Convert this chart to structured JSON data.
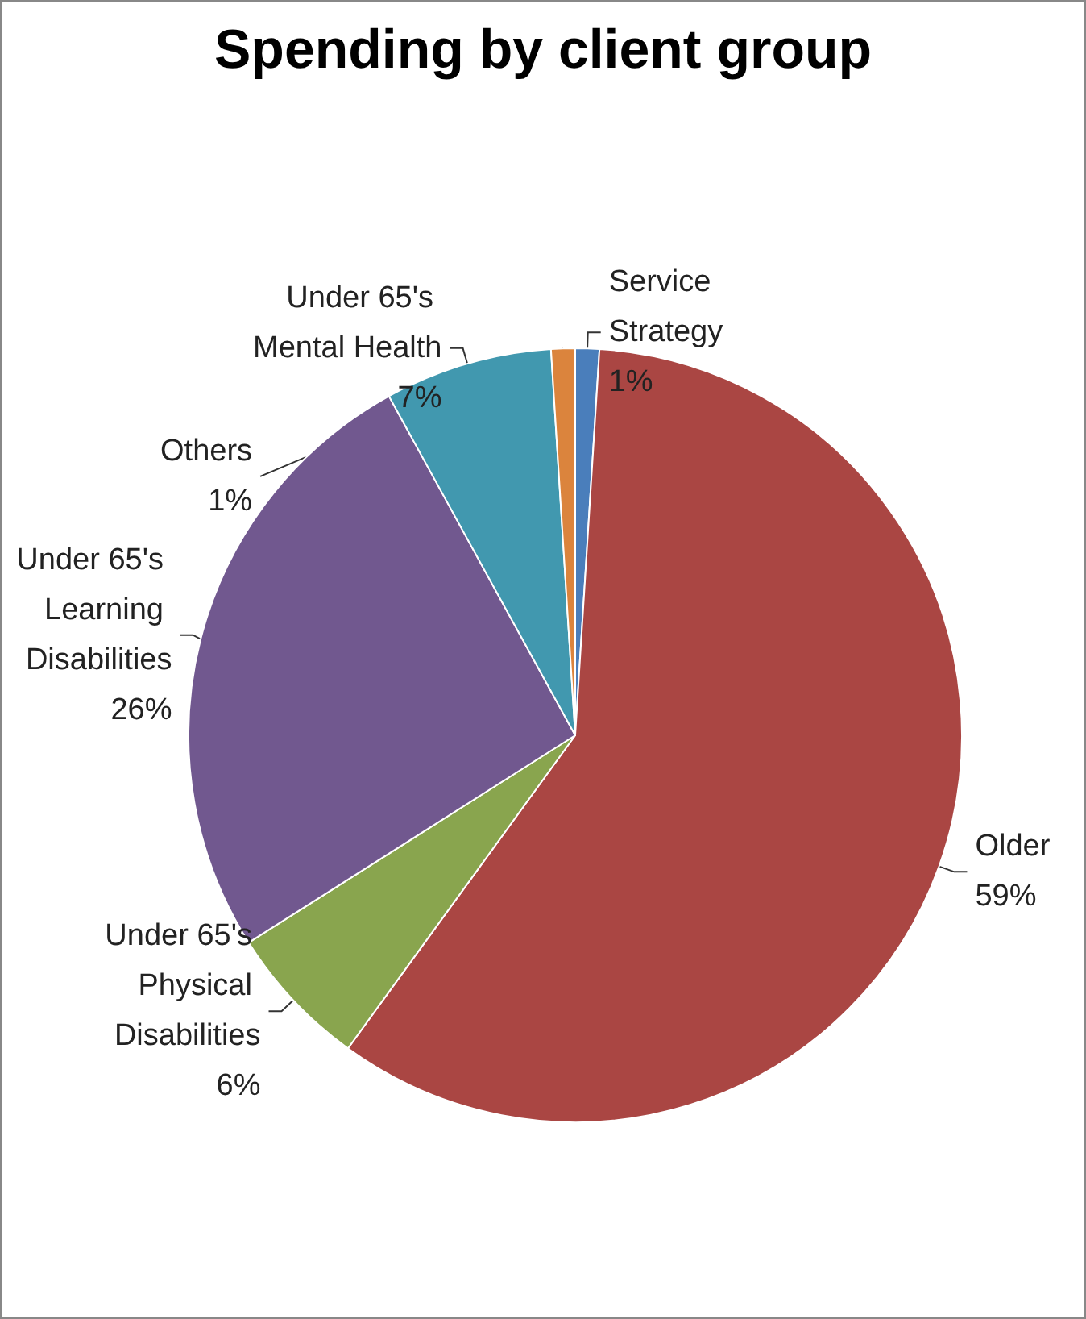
{
  "chart_data": {
    "type": "pie",
    "title": "Spending by client group",
    "categories": [
      "Service Strategy",
      "Older",
      "Under 65's Physical Disabilities",
      "Under 65's Learning Disabilities",
      "Under 65's Mental Health",
      "Others"
    ],
    "values": [
      1,
      59,
      6,
      26,
      7,
      1
    ],
    "value_labels": [
      "1%",
      "59%",
      "6%",
      "26%",
      "7%",
      "1%"
    ],
    "colors": [
      "#4a7ebb",
      "#aa4643",
      "#89a54e",
      "#71588f",
      "#4198af",
      "#db843d"
    ],
    "legend": false
  }
}
